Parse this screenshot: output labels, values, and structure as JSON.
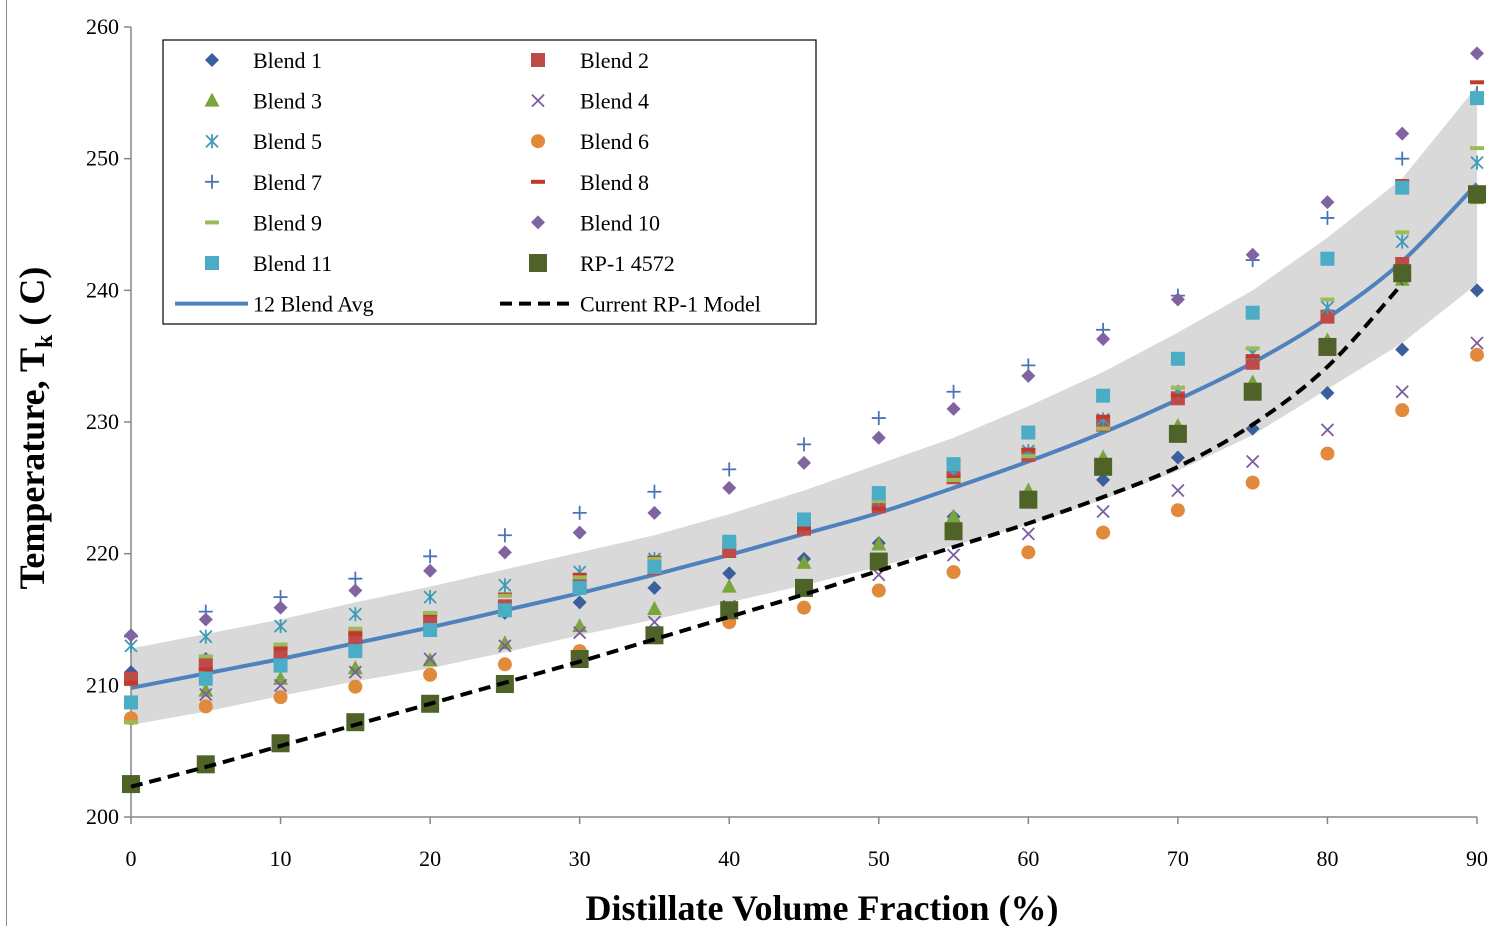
{
  "chart_data": {
    "type": "scatter",
    "xlabel": "Distillate Volume Fraction (%)",
    "ylabel": "Temperature, T",
    "ylabel_sub": "k",
    "ylabel_suffix": " ( C)",
    "xlim": [
      0,
      90
    ],
    "ylim": [
      200,
      260
    ],
    "x_ticks": [
      0,
      10,
      20,
      30,
      40,
      50,
      60,
      70,
      80,
      90
    ],
    "y_ticks": [
      200,
      210,
      220,
      230,
      240,
      250,
      260
    ],
    "grid": false,
    "legend_position": "top-left",
    "x": [
      0,
      5,
      10,
      15,
      20,
      25,
      30,
      35,
      40,
      45,
      50,
      55,
      60,
      65,
      70,
      75,
      80,
      85,
      90
    ],
    "band": {
      "lower": [
        207.0,
        208.0,
        209.2,
        210.3,
        211.3,
        212.5,
        213.8,
        215.0,
        216.3,
        217.6,
        219.0,
        220.6,
        222.2,
        224.1,
        226.3,
        229.0,
        232.5,
        236.0,
        240.5
      ],
      "upper": [
        212.8,
        213.9,
        215.0,
        216.3,
        217.5,
        218.8,
        220.1,
        221.4,
        223.0,
        224.8,
        226.8,
        228.8,
        231.2,
        233.8,
        236.8,
        240.0,
        244.0,
        248.5,
        255.5
      ],
      "color": "#d9d9d9"
    },
    "series": [
      {
        "name": "Blend 1",
        "marker": "diamond",
        "color": "#3a5f9c",
        "values": [
          211.0,
          212.0,
          212.5,
          213.5,
          214.5,
          215.5,
          216.3,
          217.4,
          218.5,
          219.6,
          220.8,
          222.8,
          224.2,
          225.6,
          227.3,
          229.5,
          232.2,
          235.5,
          240.0
        ]
      },
      {
        "name": "Blend 2",
        "marker": "square",
        "color": "#be4b48",
        "values": [
          210.5,
          211.6,
          212.6,
          213.7,
          214.9,
          216.0,
          217.6,
          218.9,
          220.2,
          221.9,
          223.6,
          225.8,
          227.5,
          229.8,
          231.8,
          234.5,
          238.0,
          242.0,
          247.2
        ]
      },
      {
        "name": "Blend 3",
        "marker": "triangle",
        "color": "#7aa53d",
        "values": [
          207.5,
          209.6,
          210.5,
          211.3,
          211.9,
          213.2,
          214.5,
          215.8,
          217.5,
          219.3,
          220.7,
          222.8,
          224.8,
          227.3,
          229.7,
          233.0,
          236.2,
          240.8,
          247.0
        ]
      },
      {
        "name": "Blend 4",
        "marker": "x",
        "color": "#7b5c9e",
        "values": [
          208.7,
          209.3,
          210.0,
          211.0,
          212.0,
          213.0,
          214.0,
          214.8,
          216.0,
          217.5,
          218.4,
          219.9,
          221.5,
          223.2,
          224.8,
          227.0,
          229.4,
          232.3,
          236.0
        ]
      },
      {
        "name": "Blend 5",
        "marker": "asterisk",
        "color": "#3f9bb5",
        "values": [
          213.0,
          213.7,
          214.5,
          215.4,
          216.7,
          217.6,
          218.6,
          219.6,
          220.9,
          222.4,
          224.2,
          226.0,
          227.8,
          230.2,
          232.3,
          235.2,
          238.7,
          243.7,
          249.7
        ]
      },
      {
        "name": "Blend 6",
        "marker": "circle",
        "color": "#e28a3c",
        "values": [
          207.5,
          208.4,
          209.1,
          209.9,
          210.8,
          211.6,
          212.6,
          213.8,
          214.8,
          215.9,
          217.2,
          218.6,
          220.1,
          221.6,
          223.3,
          225.4,
          227.6,
          230.9,
          235.1
        ]
      },
      {
        "name": "Blend 7",
        "marker": "plus",
        "color": "#4a73b8",
        "values": [
          213.7,
          215.6,
          216.7,
          218.1,
          219.8,
          221.4,
          223.1,
          224.7,
          226.4,
          228.3,
          230.3,
          232.3,
          234.3,
          237.0,
          239.6,
          242.3,
          245.5,
          250.0,
          255.0
        ]
      },
      {
        "name": "Blend 8",
        "marker": "dash",
        "color": "#c0392b",
        "values": [
          210.2,
          211.2,
          212.8,
          213.9,
          215.4,
          216.9,
          218.4,
          219.7,
          220.7,
          221.9,
          223.4,
          225.8,
          227.9,
          230.4,
          232.0,
          235.0,
          242.7,
          248.3,
          255.8
        ]
      },
      {
        "name": "Blend 9",
        "marker": "dash",
        "color": "#9bbb59",
        "values": [
          207.2,
          212.2,
          213.1,
          214.3,
          215.5,
          216.8,
          218.2,
          219.6,
          221.0,
          222.7,
          224.0,
          225.6,
          227.4,
          229.5,
          232.6,
          235.6,
          239.3,
          244.4,
          250.8
        ]
      },
      {
        "name": "Blend 10",
        "marker": "diamond",
        "color": "#8064a2",
        "values": [
          213.8,
          215.0,
          215.9,
          217.2,
          218.7,
          220.1,
          221.6,
          223.1,
          225.0,
          226.9,
          228.8,
          231.0,
          233.5,
          236.3,
          239.3,
          242.7,
          246.7,
          251.9,
          258.0
        ]
      },
      {
        "name": "Blend 11",
        "marker": "square",
        "color": "#4bacc6",
        "values": [
          208.7,
          210.5,
          211.5,
          212.6,
          214.2,
          215.7,
          217.4,
          219.0,
          220.9,
          222.6,
          224.6,
          226.8,
          229.2,
          232.0,
          234.8,
          238.3,
          242.4,
          247.8,
          254.6
        ]
      },
      {
        "name": "RP-1 4572",
        "marker": "square-large",
        "color": "#4f6228",
        "values": [
          202.5,
          204.0,
          205.6,
          207.2,
          208.6,
          210.1,
          212.0,
          213.8,
          215.7,
          217.4,
          219.4,
          221.7,
          224.1,
          226.6,
          229.1,
          232.3,
          235.7,
          241.3,
          247.3
        ]
      }
    ],
    "lines": [
      {
        "name": "12 Blend Avg",
        "style": "solid",
        "color": "#4f81bd",
        "values": [
          209.8,
          210.9,
          212.0,
          213.2,
          214.4,
          215.7,
          217.0,
          218.4,
          219.9,
          221.5,
          223.1,
          225.0,
          227.0,
          229.2,
          231.7,
          234.5,
          237.9,
          242.2,
          248.1
        ]
      },
      {
        "name": "Current RP-1 Model",
        "style": "dashed",
        "color": "#000000",
        "values": [
          202.3,
          203.8,
          205.4,
          207.0,
          208.6,
          210.2,
          211.8,
          213.5,
          215.2,
          216.9,
          218.7,
          220.5,
          222.3,
          224.3,
          226.6,
          229.8,
          234.2,
          240.5,
          null
        ]
      }
    ]
  }
}
